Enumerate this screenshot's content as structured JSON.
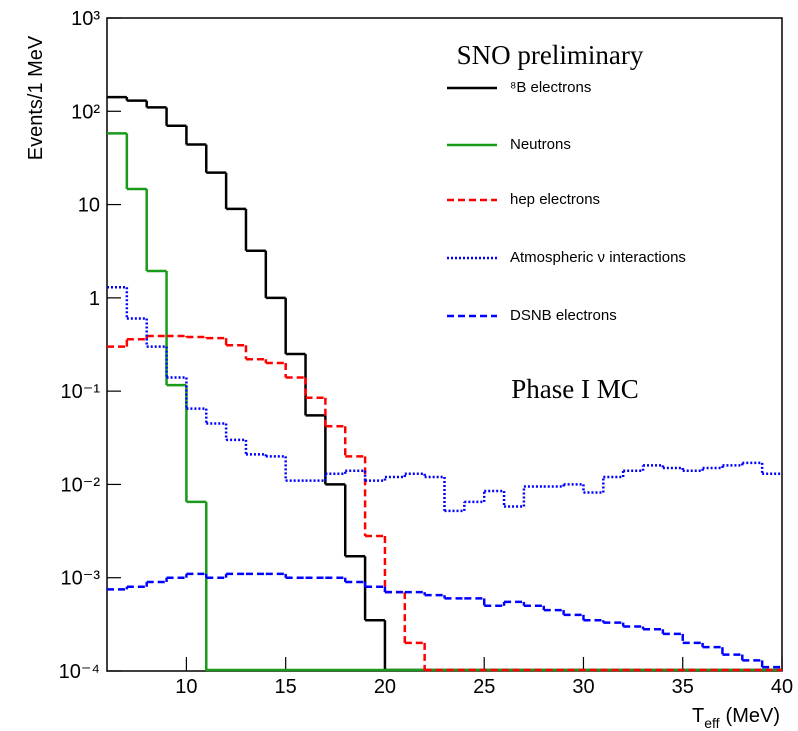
{
  "chart_data": {
    "type": "step-histogram",
    "annotations": [
      "SNO preliminary",
      "Phase I MC"
    ],
    "y_label": "Events/1 MeV",
    "x_label": [
      "T",
      "eff",
      "(MeV)"
    ],
    "log_y": true,
    "xlim": [
      6,
      40
    ],
    "xticks": [
      10,
      15,
      20,
      25,
      30,
      35,
      40
    ],
    "ylim": [
      0.0001,
      1000
    ],
    "yticks": [
      {
        "value": 0.0001,
        "label": "10⁻⁴"
      },
      {
        "value": 0.001,
        "label": "10⁻³"
      },
      {
        "value": 0.01,
        "label": "10⁻²"
      },
      {
        "value": 0.1,
        "label": "10⁻¹"
      },
      1,
      10,
      {
        "value": 100,
        "label": "10²"
      },
      {
        "value": 1000,
        "label": "10³"
      }
    ],
    "bins": [
      6,
      7,
      8,
      9,
      10,
      11,
      12,
      13,
      14,
      15,
      16,
      17,
      18,
      19,
      20,
      21,
      22,
      23,
      24,
      25,
      26,
      27,
      28,
      29,
      30,
      31,
      32,
      33,
      34,
      35,
      36,
      37,
      38,
      39,
      40
    ],
    "series": [
      {
        "name": "⁸B electrons",
        "color": "#000000",
        "dash": "solid",
        "values": [
          142,
          130,
          110,
          70,
          44,
          22,
          9,
          3.2,
          1,
          0.25,
          0.055,
          0.01,
          0.0017,
          0.00035
        ]
      },
      {
        "name": "Neutrons",
        "color": "#1a9a1a",
        "dash": "solid",
        "values": [
          58,
          14.7,
          1.94,
          0.116,
          0.0065
        ]
      },
      {
        "name": "hep electrons",
        "color": "#ff0000",
        "dash": "dashed",
        "values": [
          0.3,
          0.36,
          0.39,
          0.39,
          0.38,
          0.37,
          0.31,
          0.22,
          0.2,
          0.14,
          0.085,
          0.042,
          0.02,
          0.0028,
          0.0007,
          0.0002
        ]
      },
      {
        "name": "Atmospheric ν interactions",
        "color": "#0000ff",
        "dash": "dotted",
        "values": [
          1.3,
          0.6,
          0.3,
          0.14,
          0.065,
          0.045,
          0.03,
          0.021,
          0.02,
          0.011,
          0.011,
          0.013,
          0.014,
          0.011,
          0.012,
          0.013,
          0.012,
          0.0052,
          0.0065,
          0.0085,
          0.0058,
          0.0095,
          0.0095,
          0.01,
          0.0082,
          0.012,
          0.014,
          0.016,
          0.015,
          0.014,
          0.015,
          0.016,
          0.017,
          0.013
        ]
      },
      {
        "name": "DSNB electrons",
        "color": "#0000ff",
        "dash": "dashed",
        "values": [
          0.00075,
          0.0008,
          0.0009,
          0.001,
          0.0011,
          0.001,
          0.0011,
          0.0011,
          0.0011,
          0.001,
          0.001,
          0.001,
          0.0009,
          0.0008,
          0.0007,
          0.0007,
          0.00065,
          0.0006,
          0.0006,
          0.0005,
          0.00055,
          0.0005,
          0.00045,
          0.0004,
          0.00035,
          0.00033,
          0.0003,
          0.00028,
          0.00025,
          0.0002,
          0.00018,
          0.00015,
          0.00013,
          0.00011
        ]
      }
    ]
  }
}
